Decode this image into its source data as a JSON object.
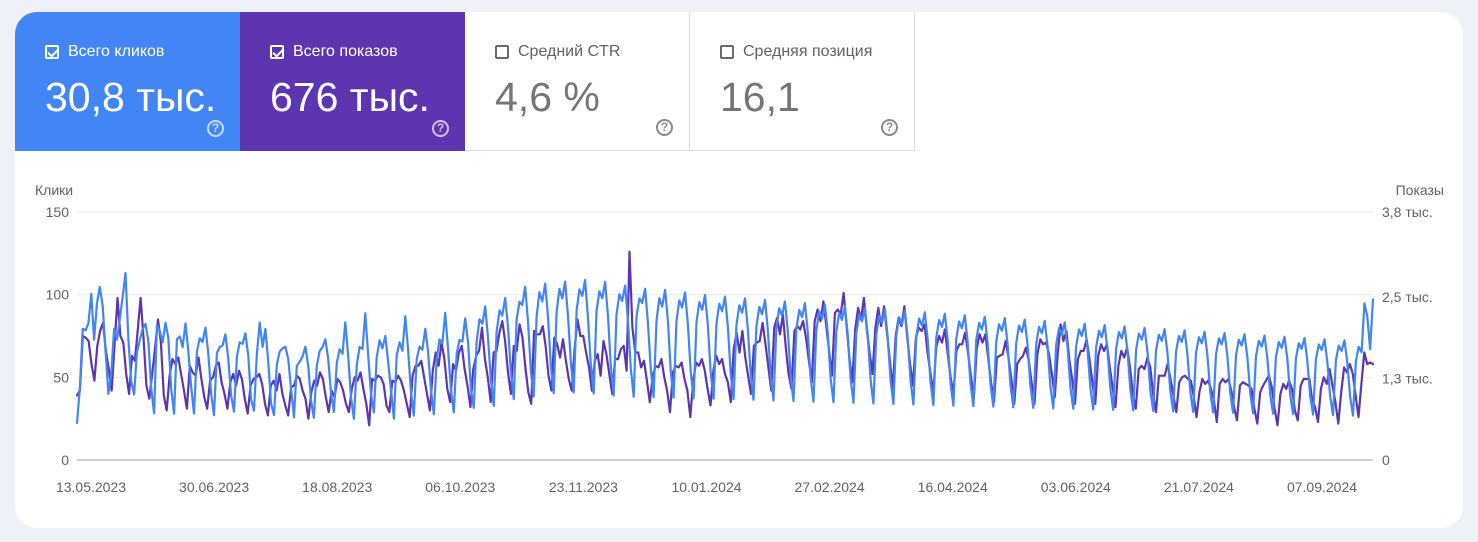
{
  "metrics": [
    {
      "key": "clicks",
      "label": "Всего кликов",
      "value": "30,8 тыс.",
      "checked": true,
      "color": "#4285f4"
    },
    {
      "key": "impr",
      "label": "Всего показов",
      "value": "676 тыс.",
      "checked": true,
      "color": "#5e35b1"
    },
    {
      "key": "ctr",
      "label": "Средний CTR",
      "value": "4,6 %",
      "checked": false,
      "color": "#ffffff"
    },
    {
      "key": "pos",
      "label": "Средняя позиция",
      "value": "16,1",
      "checked": false,
      "color": "#ffffff"
    }
  ],
  "help_icon": "?",
  "chart_data": {
    "type": "line",
    "left_axis": {
      "title": "Клики",
      "min": 0,
      "max": 150,
      "ticks": [
        0,
        50,
        100,
        150
      ],
      "tick_labels": [
        "0",
        "50",
        "100",
        "150"
      ]
    },
    "right_axis": {
      "title": "Показы",
      "min": 0,
      "max": 3800,
      "ticks": [
        0,
        1250,
        2500,
        3800
      ],
      "tick_labels": [
        "0",
        "1,3 тыс.",
        "2,5 тыс.",
        "3,8 тыс."
      ]
    },
    "x_tick_labels": [
      "13.05.2023",
      "30.06.2023",
      "18.08.2023",
      "06.10.2023",
      "23.11.2023",
      "10.01.2024",
      "27.02.2024",
      "16.04.2024",
      "03.06.2024",
      "21.07.2024",
      "07.09.2024"
    ],
    "x_start": "2023-05-13",
    "x_end": "2024-09-08",
    "grid": true,
    "series": [
      {
        "name": "Клики",
        "axis": "left",
        "color": "#5e35b1",
        "values": [
          39,
          42,
          75,
          74,
          72,
          58,
          48,
          69,
          78,
          83,
          66,
          55,
          42,
          70,
          98,
          75,
          71,
          52,
          40,
          63,
          60,
          79,
          98,
          74,
          45,
          37,
          52,
          68,
          85,
          71,
          39,
          30,
          51,
          61,
          58,
          62,
          52,
          42,
          31,
          57,
          53,
          51,
          62,
          49,
          38,
          31,
          48,
          50,
          57,
          59,
          47,
          40,
          31,
          47,
          52,
          45,
          54,
          49,
          37,
          28,
          45,
          49,
          50,
          52,
          46,
          34,
          27,
          45,
          48,
          42,
          52,
          40,
          33,
          27,
          44,
          45,
          51,
          49,
          42,
          37,
          25,
          41,
          48,
          45,
          53,
          49,
          38,
          29,
          42,
          38,
          49,
          47,
          42,
          34,
          29,
          43,
          50,
          48,
          53,
          43,
          34,
          21,
          49,
          48,
          51,
          50,
          46,
          33,
          29,
          48,
          47,
          51,
          48,
          42,
          34,
          26,
          51,
          57,
          57,
          60,
          50,
          40,
          30,
          54,
          65,
          57,
          71,
          61,
          43,
          35,
          58,
          54,
          65,
          69,
          55,
          45,
          32,
          55,
          63,
          66,
          80,
          61,
          50,
          35,
          65,
          66,
          77,
          84,
          72,
          53,
          40,
          69,
          66,
          82,
          74,
          56,
          41,
          34,
          78,
          76,
          76,
          81,
          69,
          51,
          42,
          74,
          70,
          62,
          73,
          60,
          49,
          42,
          67,
          85,
          75,
          75,
          65,
          56,
          42,
          60,
          64,
          51,
          72,
          64,
          52,
          40,
          61,
          61,
          67,
          69,
          54,
          126,
          80,
          65,
          65,
          56,
          60,
          48,
          35,
          51,
          57,
          56,
          61,
          50,
          42,
          29,
          53,
          57,
          56,
          59,
          49,
          42,
          26,
          48,
          59,
          57,
          61,
          54,
          43,
          33,
          54,
          63,
          58,
          61,
          52,
          47,
          35,
          67,
          77,
          65,
          78,
          62,
          51,
          40,
          69,
          71,
          72,
          83,
          70,
          56,
          42,
          80,
          86,
          76,
          88,
          68,
          52,
          43,
          78,
          81,
          79,
          84,
          74,
          60,
          47,
          84,
          91,
          84,
          96,
          81,
          66,
          51,
          89,
          91,
          88,
          101,
          82,
          62,
          47,
          79,
          92,
          85,
          98,
          79,
          65,
          52,
          80,
          92,
          81,
          93,
          77,
          60,
          43,
          75,
          86,
          81,
          93,
          74,
          58,
          45,
          74,
          80,
          78,
          82,
          65,
          53,
          40,
          68,
          75,
          71,
          79,
          64,
          50,
          40,
          66,
          70,
          70,
          77,
          65,
          51,
          37,
          67,
          76,
          71,
          76,
          61,
          47,
          35,
          62,
          63,
          64,
          72,
          62,
          49,
          34,
          58,
          61,
          63,
          68,
          60,
          47,
          34,
          64,
          73,
          70,
          71,
          64,
          52,
          38,
          64,
          82,
          72,
          78,
          61,
          49,
          34,
          61,
          66,
          66,
          73,
          61,
          47,
          34,
          63,
          70,
          66,
          70,
          56,
          44,
          32,
          57,
          66,
          62,
          68,
          56,
          40,
          31,
          55,
          57,
          55,
          62,
          56,
          40,
          29,
          51,
          51,
          51,
          58,
          49,
          39,
          29,
          47,
          50,
          51,
          49,
          48,
          39,
          26,
          41,
          49,
          46,
          48,
          43,
          36,
          23,
          46,
          49,
          47,
          49,
          42,
          32,
          24,
          45,
          47,
          46,
          45,
          43,
          31,
          22,
          41,
          45,
          48,
          51,
          44,
          31,
          21,
          40,
          46,
          43,
          48,
          43,
          30,
          24,
          45,
          49,
          49,
          49,
          36,
          32,
          23,
          43,
          50,
          46,
          55,
          45,
          35,
          22,
          41,
          56,
          53,
          58,
          52,
          39,
          26,
          46,
          65,
          58,
          59,
          58
        ],
        "data_labels": [
          {
            "index": 191,
            "value": 126
          }
        ]
      },
      {
        "name": "Показы",
        "axis": "right",
        "color": "#4285f4",
        "values": [
          568,
          1112,
          2010,
          1988,
          2093,
          2547,
          1847,
          2407,
          2649,
          2357,
          1681,
          1013,
          1328,
          2009,
          1846,
          2157,
          2504,
          2866,
          1848,
          1207,
          1003,
          1646,
          1840,
          2008,
          2085,
          1815,
          1098,
          715,
          2062,
          1978,
          1804,
          2101,
          1879,
          1088,
          710,
          1850,
          1894,
          1729,
          2094,
          1669,
          1119,
          713,
          1659,
          1865,
          1809,
          2028,
          1632,
          1008,
          687,
          1640,
          1729,
          1754,
          1926,
          1549,
          987,
          742,
          1585,
          1804,
          1780,
          1941,
          1597,
          926,
          755,
          1612,
          2107,
          1733,
          2010,
          1500,
          859,
          690,
          1455,
          1663,
          1710,
          1736,
          1550,
          1085,
          655,
          1442,
          1505,
          1583,
          1736,
          1446,
          903,
          647,
          1442,
          1667,
          1729,
          1849,
          1549,
          1018,
          737,
          1488,
          1697,
          1627,
          2110,
          1587,
          965,
          632,
          1458,
          1731,
          1701,
          2250,
          1598,
          1017,
          730,
          1571,
          1836,
          1710,
          1900,
          1498,
          1073,
          633,
          1604,
          1803,
          1674,
          2204,
          1682,
          1048,
          680,
          1543,
          1738,
          1688,
          2010,
          1657,
          1066,
          700,
          1545,
          1846,
          1791,
          2256,
          1695,
          1065,
          729,
          1631,
          1841,
          1814,
          2170,
          1801,
          1083,
          800,
          1808,
          2155,
          2089,
          2353,
          1853,
          1226,
          830,
          1965,
          2293,
          2212,
          2482,
          2042,
          1342,
          933,
          2149,
          2425,
          2377,
          2657,
          2126,
          1358,
          970,
          2192,
          2573,
          2429,
          2703,
          2200,
          1425,
          1024,
          2263,
          2621,
          2474,
          2733,
          2210,
          1490,
          1035,
          2288,
          2614,
          2515,
          2760,
          2175,
          1467,
          1019,
          2275,
          2585,
          2478,
          2729,
          2209,
          1443,
          986,
          2226,
          2541,
          2435,
          2672,
          2153,
          1402,
          970,
          2196,
          2476,
          2406,
          2625,
          2104,
          1390,
          962,
          2135,
          2480,
          2351,
          2608,
          2135,
          1351,
          954,
          2133,
          2445,
          2335,
          2566,
          2078,
          1356,
          944,
          2109,
          2420,
          2301,
          2528,
          2059,
          1335,
          940,
          2084,
          2395,
          2278,
          2503,
          2040,
          1320,
          931,
          2063,
          2371,
          2255,
          2478,
          2020,
          1306,
          922,
          2042,
          2347,
          2232,
          2453,
          2000,
          1293,
          912,
          2022,
          2324,
          2210,
          2428,
          1980,
          1280,
          903,
          2002,
          2300,
          2188,
          2404,
          1960,
          1267,
          894,
          1982,
          2277,
          2166,
          2380,
          1941,
          1255,
          885,
          1962,
          2255,
          2145,
          2356,
          1921,
          1242,
          876,
          1942,
          2232,
          2123,
          2333,
          1902,
          1230,
          867,
          1923,
          2210,
          2102,
          2309,
          1883,
          1217,
          858,
          1904,
          2188,
          2081,
          2286,
          1864,
          1205,
          850,
          1885,
          2166,
          2060,
          2263,
          1845,
          1193,
          841,
          1866,
          2144,
          2040,
          2241,
          1827,
          1181,
          833,
          1847,
          2123,
          2019,
          2218,
          1809,
          1169,
          824,
          1829,
          2102,
          1999,
          2196,
          1791,
          1158,
          816,
          1810,
          2081,
          1979,
          2174,
          1773,
          1146,
          808,
          1792,
          2060,
          1959,
          2152,
          1755,
          1135,
          800,
          1774,
          2039,
          1940,
          2131,
          1737,
          1123,
          792,
          1757,
          2019,
          1920,
          2109,
          1720,
          1112,
          784,
          1739,
          1999,
          1901,
          2088,
          1703,
          1101,
          776,
          1722,
          1979,
          1882,
          2067,
          1686,
          1090,
          768,
          1705,
          1959,
          1863,
          2047,
          1669,
          1079,
          760,
          1688,
          1939,
          1845,
          2026,
          1652,
          1068,
          753,
          1671,
          1920,
          1826,
          2006,
          1635,
          1057,
          745,
          1654,
          1900,
          1808,
          1986,
          1619,
          1047,
          738,
          1638,
          1881,
          1790,
          1966,
          1603,
          1036,
          730,
          1621,
          1863,
          1772,
          1946,
          1587,
          1026,
          723,
          1605,
          1844,
          1754,
          1927,
          1571,
          1016,
          716,
          1589,
          1825,
          1736,
          1908,
          1555,
          1005,
          709,
          1573,
          1807,
          1719,
          1889,
          1540,
          995,
          702,
          1557,
          1789,
          1702,
          1870,
          1524,
          985,
          695,
          1542,
          1771,
          1685,
          1851,
          1509,
          975,
          688,
          1526,
          1753,
          1668,
          1832,
          1494,
          966,
          681,
          1511,
          1736,
          1651,
          2400,
          2200,
          1700,
          2460
        ]
      }
    ]
  }
}
